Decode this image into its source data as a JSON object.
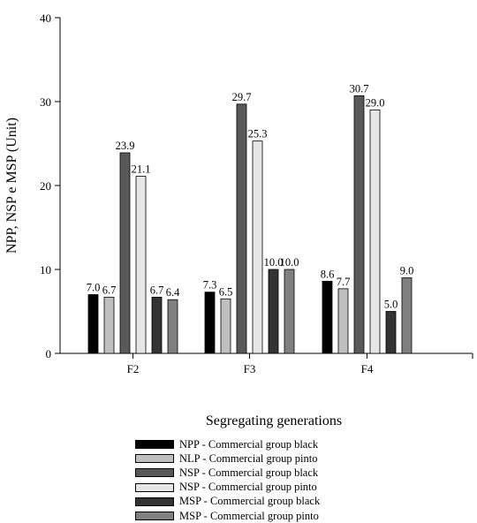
{
  "chart_data": {
    "type": "bar",
    "ylabel": "NPP, NSP e MSP (Unit)",
    "xlabel": "Segregating generations",
    "title": "",
    "ylim": [
      0,
      40
    ],
    "yticks": [
      0,
      10,
      20,
      30,
      40
    ],
    "grid": false,
    "legend_placement": "bottom",
    "categories": [
      "F2",
      "F3",
      "F4"
    ],
    "series": [
      {
        "name": "NPP - Commercial group black",
        "color": "#000000",
        "values": [
          7.0,
          7.3,
          8.6
        ],
        "labels": [
          "7.0",
          "7.3",
          "8.6"
        ]
      },
      {
        "name": "NLP - Commercial group pinto",
        "color": "#bfbfbf",
        "values": [
          6.7,
          6.5,
          7.7
        ],
        "labels": [
          "6.7",
          "6.5",
          "7.7"
        ]
      },
      {
        "name": "NSP - Commercial group black",
        "color": "#595959",
        "values": [
          23.9,
          29.7,
          30.7
        ],
        "labels": [
          "23.9",
          "29.7",
          "30.7"
        ]
      },
      {
        "name": "NSP - Commercial group pinto",
        "color": "#e6e6e6",
        "values": [
          21.1,
          25.3,
          29.0
        ],
        "labels": [
          "21.1",
          "25.3",
          "29.0"
        ]
      },
      {
        "name": "MSP - Commercial group black",
        "color": "#333333",
        "values": [
          6.7,
          10.0,
          5.0
        ],
        "labels": [
          "6.7",
          "10.0",
          "5.0"
        ]
      },
      {
        "name": "MSP - Commercial group pinto",
        "color": "#808080",
        "values": [
          6.4,
          10.0,
          9.0
        ],
        "labels": [
          "6.4",
          "10.0",
          "9.0"
        ]
      }
    ]
  }
}
